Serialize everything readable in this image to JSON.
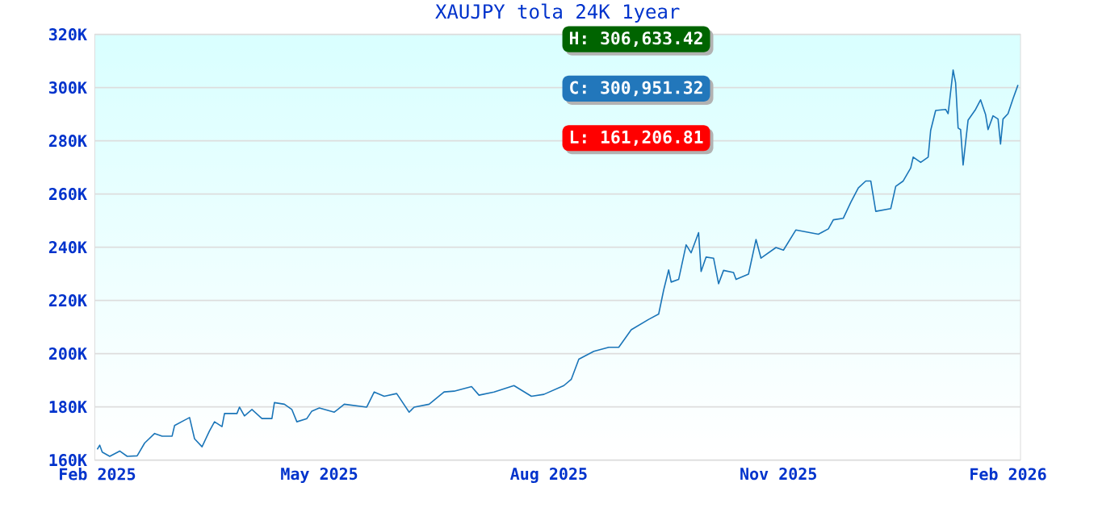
{
  "chart_data": {
    "type": "line",
    "title": "XAUJPY tola 24K 1year",
    "x": [
      "2025-02-01",
      "2025-02-02",
      "2025-02-03",
      "2025-02-06",
      "2025-02-10",
      "2025-02-13",
      "2025-02-17",
      "2025-02-20",
      "2025-02-24",
      "2025-02-27",
      "2025-03-03",
      "2025-03-04",
      "2025-03-08",
      "2025-03-10",
      "2025-03-12",
      "2025-03-15",
      "2025-03-18",
      "2025-03-20",
      "2025-03-23",
      "2025-03-24",
      "2025-03-29",
      "2025-03-30",
      "2025-04-01",
      "2025-04-04",
      "2025-04-08",
      "2025-04-12",
      "2025-04-13",
      "2025-04-17",
      "2025-04-20",
      "2025-04-22",
      "2025-04-26",
      "2025-04-28",
      "2025-05-01",
      "2025-05-07",
      "2025-05-11",
      "2025-05-20",
      "2025-05-23",
      "2025-05-27",
      "2025-06-01",
      "2025-06-06",
      "2025-06-08",
      "2025-06-14",
      "2025-06-20",
      "2025-06-24",
      "2025-07-01",
      "2025-07-04",
      "2025-07-10",
      "2025-07-18",
      "2025-07-25",
      "2025-07-30",
      "2025-08-07",
      "2025-08-10",
      "2025-08-13",
      "2025-08-19",
      "2025-08-25",
      "2025-08-29",
      "2025-09-03",
      "2025-09-10",
      "2025-09-14",
      "2025-09-16",
      "2025-09-18",
      "2025-09-19",
      "2025-09-22",
      "2025-09-25",
      "2025-09-27",
      "2025-09-30",
      "2025-10-01",
      "2025-10-03",
      "2025-10-06",
      "2025-10-08",
      "2025-10-10",
      "2025-10-14",
      "2025-10-15",
      "2025-10-20",
      "2025-10-23",
      "2025-10-25",
      "2025-10-31",
      "2025-11-03",
      "2025-11-08",
      "2025-11-17",
      "2025-11-21",
      "2025-11-23",
      "2025-11-27",
      "2025-11-30",
      "2025-12-03",
      "2025-12-06",
      "2025-12-08",
      "2025-12-10",
      "2025-12-16",
      "2025-12-18",
      "2025-12-21",
      "2025-12-24",
      "2025-12-25",
      "2025-12-28",
      "2025-12-31",
      "2026-01-01",
      "2026-01-03",
      "2026-01-07",
      "2026-01-08",
      "2026-01-10",
      "2026-01-11",
      "2026-01-12",
      "2026-01-13",
      "2026-01-14",
      "2026-01-16",
      "2026-01-19",
      "2026-01-21",
      "2026-01-23",
      "2026-01-24",
      "2026-01-26",
      "2026-01-28",
      "2026-01-29",
      "2026-01-30",
      "2026-02-01",
      "2026-02-03",
      "2026-02-05"
    ],
    "series": [
      {
        "color": "#1a75b8",
        "values": [
          164000,
          165600,
          163000,
          161400,
          163400,
          161400,
          161600,
          166400,
          170000,
          169000,
          169000,
          173000,
          175000,
          176000,
          168000,
          165000,
          171000,
          174400,
          172600,
          177500,
          177500,
          179900,
          176600,
          179000,
          175600,
          175600,
          181600,
          181000,
          179000,
          174400,
          175600,
          178400,
          179600,
          178000,
          181000,
          179900,
          185600,
          184000,
          185000,
          178000,
          179900,
          181000,
          185600,
          185900,
          187600,
          184400,
          185600,
          188000,
          184000,
          184700,
          188000,
          190400,
          197900,
          200900,
          202400,
          202400,
          209000,
          212900,
          214900,
          223900,
          231500,
          226900,
          227900,
          240900,
          237900,
          245500,
          230900,
          236300,
          235900,
          226300,
          231300,
          230500,
          227900,
          229900,
          242900,
          235900,
          239900,
          238900,
          246500,
          244900,
          246900,
          250300,
          250900,
          256900,
          262300,
          264900,
          264900,
          253500,
          254500,
          262900,
          264900,
          269800,
          273900,
          271900,
          273900,
          283900,
          291400,
          291800,
          290200,
          306600,
          301800,
          284800,
          284200,
          270900,
          287800,
          291800,
          295400,
          289900,
          284200,
          289400,
          288200,
          278800,
          288200,
          290200,
          295800,
          301000
        ]
      }
    ],
    "xlim": [
      "2025-01-31",
      "2026-02-06"
    ],
    "xticks": [
      {
        "value": "2025-02-01",
        "label": "Feb 2025"
      },
      {
        "value": "2025-05-01",
        "label": "May 2025"
      },
      {
        "value": "2025-08-01",
        "label": "Aug 2025"
      },
      {
        "value": "2025-11-01",
        "label": "Nov 2025"
      },
      {
        "value": "2026-02-01",
        "label": "Feb 2026"
      }
    ],
    "ylim": [
      160000,
      320000
    ],
    "yticks": [
      {
        "value": 160000,
        "label": "160K"
      },
      {
        "value": 180000,
        "label": "180K"
      },
      {
        "value": 200000,
        "label": "200K"
      },
      {
        "value": 220000,
        "label": "220K"
      },
      {
        "value": 240000,
        "label": "240K"
      },
      {
        "value": 260000,
        "label": "260K"
      },
      {
        "value": 280000,
        "label": "280K"
      },
      {
        "value": 300000,
        "label": "300K"
      },
      {
        "value": 320000,
        "label": "320K"
      }
    ],
    "grid": "y",
    "annotations": [
      "H: 306,633.42",
      "C: 300,951.32",
      "L: 161,206.81"
    ]
  }
}
